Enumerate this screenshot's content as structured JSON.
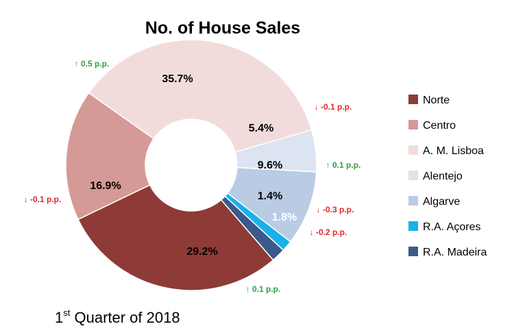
{
  "chart_data": {
    "type": "pie",
    "donut": true,
    "title": "No. of House Sales",
    "footer": {
      "prefix": "1",
      "superscript": "st",
      "text": " Quarter of 2018"
    },
    "slices": [
      {
        "name": "Norte",
        "value": 29.2,
        "label": "29.2%",
        "color": "#8e3a36",
        "change": "↑ 0.1 p.p.",
        "change_color": "#2e9e47"
      },
      {
        "name": "Centro",
        "value": 16.9,
        "label": "16.9%",
        "color": "#d69a96",
        "change": "↓ -0.1 p.p.",
        "change_color": "#e0262c"
      },
      {
        "name": "A. M. Lisboa",
        "value": 35.7,
        "label": "35.7%",
        "color": "#f2dcdb",
        "change": "↑ 0.5 p.p.",
        "change_color": "#2e9e47"
      },
      {
        "name": "Alentejo",
        "value": 5.4,
        "label": "5.4%",
        "color": "#dbe4f0",
        "change": "↓ -0.1 p.p.",
        "change_color": "#e0262c"
      },
      {
        "name": "Algarve",
        "value": 9.6,
        "label": "9.6%",
        "color": "#b9cce4",
        "change": "↑ 0.1 p.p.",
        "change_color": "#2e9e47"
      },
      {
        "name": "R.A. Açores",
        "value": 1.4,
        "label": "1.4%",
        "color": "#1ab0e8",
        "change": "↓ -0.3 p.p.",
        "change_color": "#e0262c"
      },
      {
        "name": "R.A. Madeira",
        "value": 1.8,
        "label": "1.8%",
        "color": "#3a5a8c",
        "change": "↓ -0.2 p.p.",
        "change_color": "#e0262c"
      }
    ],
    "legend": {
      "position": "right"
    }
  }
}
